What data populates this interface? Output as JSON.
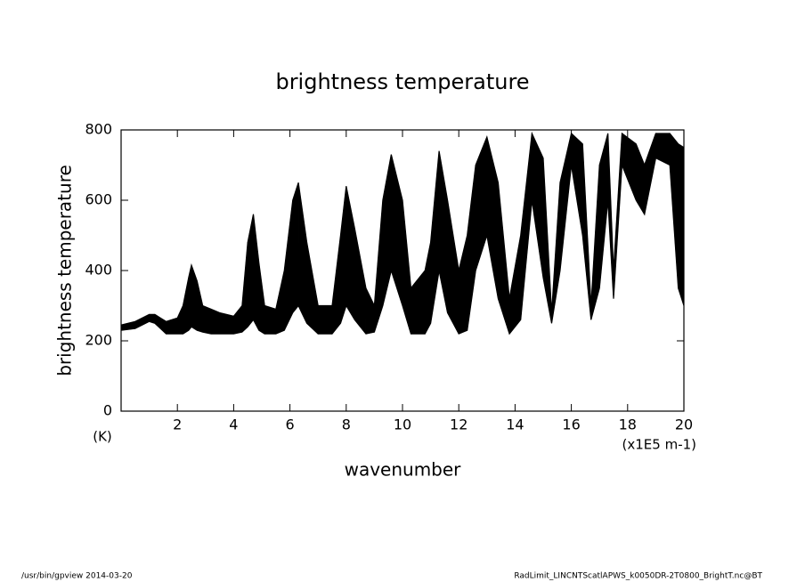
{
  "chart_data": {
    "type": "band",
    "title": "brightness temperature",
    "y_label": "brightness temperature",
    "x_label": "wavenumber",
    "y_unit": "(K)",
    "x_unit": "(x1E5 m-1)",
    "footer_left": "/usr/bin/gpview   2014-03-20",
    "footer_right": "RadLimit_LINCNTScatlAPWS_k0050DR-2T0800_BrightT.nc@BT",
    "x": [
      0,
      0.5,
      1,
      1.2,
      1.4,
      1.6,
      2,
      2.2,
      2.4,
      2.5,
      2.7,
      2.9,
      3.2,
      3.5,
      4,
      4.3,
      4.5,
      4.7,
      4.9,
      5.1,
      5.5,
      5.8,
      6.1,
      6.3,
      6.6,
      7,
      7.5,
      7.8,
      8,
      8.3,
      8.7,
      9,
      9.3,
      9.6,
      10,
      10.3,
      10.8,
      11,
      11.3,
      11.6,
      12,
      12.3,
      12.6,
      13,
      13.4,
      13.8,
      14.2,
      14.6,
      15,
      15.3,
      15.6,
      16,
      16.4,
      16.7,
      17,
      17.3,
      17.5,
      17.8,
      18.3,
      18.6,
      19,
      19.5,
      19.8,
      20
    ],
    "series": [
      {
        "color": "#000000",
        "values": [
          245,
          255,
          275,
          275,
          265,
          255,
          265,
          300,
          380,
          415,
          370,
          300,
          290,
          280,
          270,
          300,
          480,
          560,
          420,
          300,
          290,
          400,
          600,
          650,
          480,
          300,
          300,
          500,
          640,
          520,
          350,
          300,
          600,
          730,
          600,
          350,
          400,
          480,
          740,
          600,
          400,
          500,
          700,
          780,
          650,
          320,
          500,
          790,
          720,
          280,
          650,
          790,
          760,
          300,
          700,
          790,
          400,
          790,
          760,
          700,
          790,
          790,
          760,
          750
        ]
      },
      {
        "color": "#000000",
        "values": [
          230,
          235,
          255,
          250,
          235,
          220,
          220,
          220,
          230,
          240,
          230,
          225,
          220,
          220,
          220,
          225,
          240,
          260,
          230,
          220,
          220,
          230,
          280,
          300,
          250,
          220,
          220,
          250,
          300,
          260,
          220,
          225,
          300,
          400,
          300,
          220,
          220,
          250,
          400,
          280,
          220,
          230,
          400,
          500,
          320,
          220,
          260,
          600,
          380,
          250,
          400,
          700,
          500,
          260,
          350,
          600,
          320,
          700,
          600,
          560,
          720,
          700,
          350,
          300
        ]
      }
    ],
    "xlim": [
      0,
      20
    ],
    "ylim": [
      0,
      800
    ],
    "xticks": [
      2,
      4,
      6,
      8,
      10,
      12,
      14,
      16,
      18,
      20
    ],
    "yticks": [
      0,
      200,
      400,
      600,
      800
    ]
  }
}
